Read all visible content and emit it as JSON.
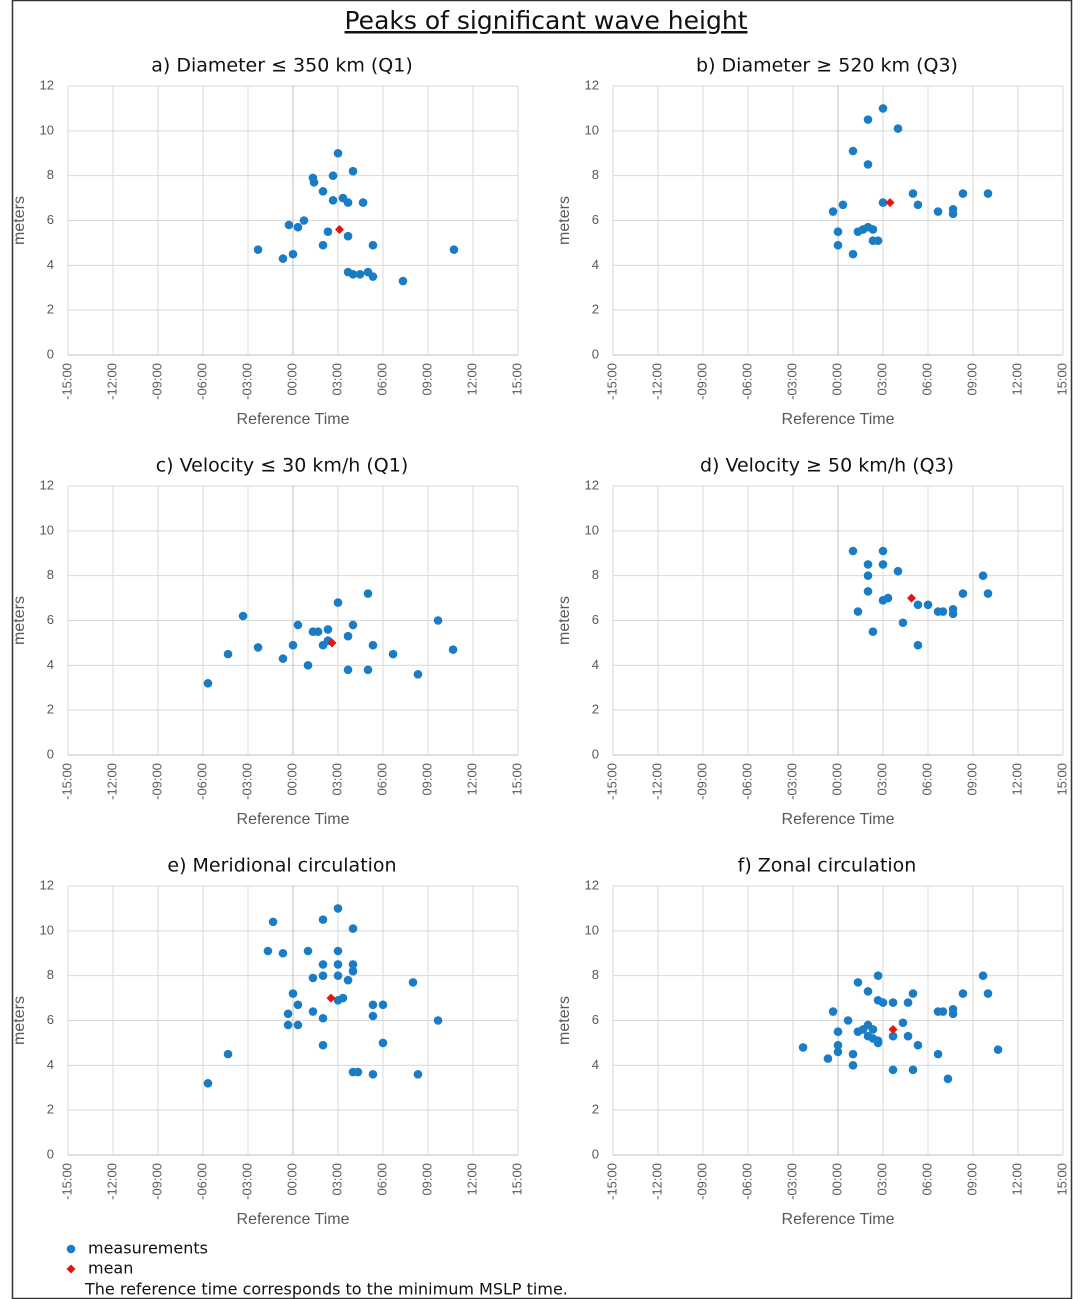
{
  "title": "Peaks of significant wave height",
  "legend": [
    {
      "name": "measurements",
      "color": "#1b7cc6",
      "marker": "circle"
    },
    {
      "name": "mean",
      "color": "#e3170f",
      "marker": "diamond"
    }
  ],
  "note": "The reference time corresponds to the minimum MSLP time.",
  "chart_data": [
    {
      "type": "scatter",
      "title": "a) Diameter ≤ 350 km (Q1)",
      "xlabel": "Reference Time",
      "ylabel": "meters",
      "xlim": [
        -15,
        15
      ],
      "xticks": [
        {
          "value": -15,
          "label": "-15:00"
        },
        {
          "value": -12,
          "label": "-12:00"
        },
        {
          "value": -9,
          "label": "-09:00"
        },
        {
          "value": -6,
          "label": "-06:00"
        },
        {
          "value": -3,
          "label": "-03:00"
        },
        {
          "value": 0,
          "label": "00:00"
        },
        {
          "value": 3,
          "label": "03:00"
        },
        {
          "value": 6,
          "label": "06:00"
        },
        {
          "value": 9,
          "label": "09:00"
        },
        {
          "value": 12,
          "label": "12:00"
        },
        {
          "value": 15,
          "label": "15:00"
        }
      ],
      "ylim": [
        0,
        12
      ],
      "yticks": [
        0,
        2,
        4,
        6,
        8,
        10,
        12
      ],
      "grid": true,
      "series": [
        {
          "x": [
            -2.33,
            -0.67,
            -0.27,
            0,
            0.33,
            0.73,
            1.33,
            1.4,
            2,
            2,
            2.33,
            2.67,
            2.67,
            3,
            3.33,
            3.67,
            4,
            3.67,
            4.67,
            3.67,
            4,
            4.47,
            5,
            5.33,
            5.33,
            7.33,
            10.73
          ],
          "values": [
            4.7,
            4.3,
            5.8,
            4.5,
            5.7,
            6.0,
            7.9,
            7.7,
            7.3,
            4.9,
            5.5,
            8.0,
            6.9,
            9.0,
            7.0,
            6.8,
            8.2,
            5.3,
            6.8,
            3.7,
            3.6,
            3.6,
            3.7,
            3.5,
            4.9,
            3.3,
            4.7
          ]
        },
        {
          "x": [
            3.1
          ],
          "values": [
            5.6
          ]
        }
      ]
    },
    {
      "type": "scatter",
      "title": "b) Diameter ≥ 520 km (Q3)",
      "xlabel": "Reference Time",
      "ylabel": "meters",
      "xlim": [
        -15,
        15
      ],
      "xticks": [
        {
          "value": -15,
          "label": "-15:00"
        },
        {
          "value": -12,
          "label": "-12:00"
        },
        {
          "value": -9,
          "label": "-09:00"
        },
        {
          "value": -6,
          "label": "-06:00"
        },
        {
          "value": -3,
          "label": "-03:00"
        },
        {
          "value": 0,
          "label": "00:00"
        },
        {
          "value": 3,
          "label": "03:00"
        },
        {
          "value": 6,
          "label": "06:00"
        },
        {
          "value": 9,
          "label": "09:00"
        },
        {
          "value": 12,
          "label": "12:00"
        },
        {
          "value": 15,
          "label": "15:00"
        }
      ],
      "ylim": [
        0,
        12
      ],
      "yticks": [
        0,
        2,
        4,
        6,
        8,
        10,
        12
      ],
      "grid": true,
      "series": [
        {
          "x": [
            -0.33,
            0.33,
            0,
            0,
            1,
            1,
            1.33,
            1.67,
            2,
            2.33,
            2,
            2,
            2.33,
            2.67,
            3,
            3,
            4,
            5,
            5.33,
            6.67,
            7.67,
            7.67,
            8.33,
            10
          ],
          "values": [
            6.4,
            6.7,
            5.5,
            4.9,
            9.1,
            4.5,
            5.5,
            5.6,
            5.7,
            5.6,
            10.5,
            8.5,
            5.1,
            5.1,
            11.0,
            6.8,
            10.1,
            7.2,
            6.7,
            6.4,
            6.5,
            6.3,
            7.2,
            7.2
          ]
        },
        {
          "x": [
            3.47
          ],
          "values": [
            6.8
          ]
        }
      ]
    },
    {
      "type": "scatter",
      "title": "c) Velocity ≤ 30 km/h (Q1)",
      "xlabel": "Reference Time",
      "ylabel": "meters",
      "xlim": [
        -15,
        15
      ],
      "xticks": [
        {
          "value": -15,
          "label": "-15:00"
        },
        {
          "value": -12,
          "label": "-12:00"
        },
        {
          "value": -9,
          "label": "-09:00"
        },
        {
          "value": -6,
          "label": "-06:00"
        },
        {
          "value": -3,
          "label": "-03:00"
        },
        {
          "value": 0,
          "label": "00:00"
        },
        {
          "value": 3,
          "label": "03:00"
        },
        {
          "value": 6,
          "label": "06:00"
        },
        {
          "value": 9,
          "label": "09:00"
        },
        {
          "value": 12,
          "label": "12:00"
        },
        {
          "value": 15,
          "label": "15:00"
        }
      ],
      "ylim": [
        0,
        12
      ],
      "yticks": [
        0,
        2,
        4,
        6,
        8,
        10,
        12
      ],
      "grid": true,
      "series": [
        {
          "x": [
            -5.67,
            -4.33,
            -3.33,
            -2.33,
            -0.67,
            0,
            0.33,
            1,
            1.33,
            1.67,
            2,
            2.33,
            2.33,
            3,
            3.67,
            4,
            3.67,
            5,
            5,
            5.33,
            6.67,
            8.33,
            9.67,
            10.67
          ],
          "values": [
            3.2,
            4.5,
            6.2,
            4.8,
            4.3,
            4.9,
            5.8,
            4.0,
            5.5,
            5.5,
            4.9,
            5.6,
            5.1,
            6.8,
            5.3,
            5.8,
            3.8,
            7.2,
            3.8,
            4.9,
            4.5,
            3.6,
            6.0,
            4.7
          ]
        },
        {
          "x": [
            2.6
          ],
          "values": [
            5.0
          ]
        }
      ]
    },
    {
      "type": "scatter",
      "title": "d) Velocity ≥ 50 km/h (Q3)",
      "xlabel": "Reference Time",
      "ylabel": "meters",
      "xlim": [
        -15,
        15
      ],
      "xticks": [
        {
          "value": -15,
          "label": "-15:00"
        },
        {
          "value": -12,
          "label": "-12:00"
        },
        {
          "value": -9,
          "label": "-09:00"
        },
        {
          "value": -6,
          "label": "-06:00"
        },
        {
          "value": -3,
          "label": "-03:00"
        },
        {
          "value": 0,
          "label": "00:00"
        },
        {
          "value": 3,
          "label": "03:00"
        },
        {
          "value": 6,
          "label": "06:00"
        },
        {
          "value": 9,
          "label": "09:00"
        },
        {
          "value": 12,
          "label": "12:00"
        },
        {
          "value": 15,
          "label": "15:00"
        }
      ],
      "ylim": [
        0,
        12
      ],
      "yticks": [
        0,
        2,
        4,
        6,
        8,
        10,
        12
      ],
      "grid": true,
      "series": [
        {
          "x": [
            1,
            1.33,
            2,
            2,
            2,
            2.33,
            3,
            3,
            3,
            3.33,
            4,
            4.33,
            5.33,
            5.33,
            6,
            6.67,
            7,
            7.67,
            7.67,
            8.33,
            9.67,
            10
          ],
          "values": [
            9.1,
            6.4,
            8.5,
            8.0,
            7.3,
            5.5,
            9.1,
            8.5,
            6.9,
            7.0,
            8.2,
            5.9,
            6.7,
            4.9,
            6.7,
            6.4,
            6.4,
            6.5,
            6.3,
            7.2,
            8.0,
            7.2
          ]
        },
        {
          "x": [
            4.9
          ],
          "values": [
            7.0
          ]
        }
      ]
    },
    {
      "type": "scatter",
      "title": "e) Meridional circulation",
      "xlabel": "Reference Time",
      "ylabel": "meters",
      "xlim": [
        -15,
        15
      ],
      "xticks": [
        {
          "value": -15,
          "label": "-15:00"
        },
        {
          "value": -12,
          "label": "-12:00"
        },
        {
          "value": -9,
          "label": "-09:00"
        },
        {
          "value": -6,
          "label": "-06:00"
        },
        {
          "value": -3,
          "label": "-03:00"
        },
        {
          "value": 0,
          "label": "00:00"
        },
        {
          "value": 3,
          "label": "03:00"
        },
        {
          "value": 6,
          "label": "06:00"
        },
        {
          "value": 9,
          "label": "09:00"
        },
        {
          "value": 12,
          "label": "12:00"
        },
        {
          "value": 15,
          "label": "15:00"
        }
      ],
      "ylim": [
        0,
        12
      ],
      "yticks": [
        0,
        2,
        4,
        6,
        8,
        10,
        12
      ],
      "grid": true,
      "series": [
        {
          "x": [
            -5.67,
            -4.33,
            -1.67,
            -1.33,
            -0.67,
            -0.33,
            -0.33,
            0,
            0.33,
            0.33,
            1,
            1.33,
            1.33,
            2,
            2,
            2,
            2,
            2,
            3,
            3,
            3,
            3,
            3,
            3.33,
            3.67,
            4,
            4,
            4,
            4,
            4.33,
            5.33,
            5.33,
            5.33,
            6,
            6,
            8,
            8.33,
            9.67
          ],
          "values": [
            3.2,
            4.5,
            9.1,
            10.4,
            9.0,
            6.3,
            5.8,
            7.2,
            6.7,
            5.8,
            9.1,
            7.9,
            6.4,
            10.5,
            8.5,
            8.0,
            6.1,
            4.9,
            11.0,
            9.1,
            8.5,
            8.0,
            6.9,
            7.0,
            7.8,
            10.1,
            8.5,
            8.2,
            3.7,
            3.7,
            6.7,
            6.2,
            3.6,
            6.7,
            5.0,
            7.7,
            3.6,
            6.0
          ]
        },
        {
          "x": [
            2.53
          ],
          "values": [
            7.0
          ]
        }
      ]
    },
    {
      "type": "scatter",
      "title": "f) Zonal circulation",
      "xlabel": "Reference Time",
      "ylabel": "meters",
      "xlim": [
        -15,
        15
      ],
      "xticks": [
        {
          "value": -15,
          "label": "-15:00"
        },
        {
          "value": -12,
          "label": "-12:00"
        },
        {
          "value": -9,
          "label": "-09:00"
        },
        {
          "value": -6,
          "label": "-06:00"
        },
        {
          "value": -3,
          "label": "-03:00"
        },
        {
          "value": 0,
          "label": "00:00"
        },
        {
          "value": 3,
          "label": "03:00"
        },
        {
          "value": 6,
          "label": "06:00"
        },
        {
          "value": 9,
          "label": "09:00"
        },
        {
          "value": 12,
          "label": "12:00"
        },
        {
          "value": 15,
          "label": "15:00"
        }
      ],
      "ylim": [
        0,
        12
      ],
      "yticks": [
        0,
        2,
        4,
        6,
        8,
        10,
        12
      ],
      "grid": true,
      "series": [
        {
          "x": [
            -2.33,
            -0.67,
            -0.33,
            0,
            0,
            0,
            0.67,
            1,
            1,
            1.33,
            1.33,
            1.67,
            2,
            2,
            2,
            2.33,
            2.33,
            2.67,
            2.67,
            2.67,
            2.67,
            3,
            3.67,
            3.67,
            3.67,
            4.33,
            4.67,
            4.67,
            5,
            5,
            5.33,
            6.67,
            6.67,
            7,
            7.33,
            7.67,
            7.67,
            8.33,
            9.67,
            10,
            10.67
          ],
          "values": [
            4.8,
            4.3,
            6.4,
            4.9,
            4.6,
            5.5,
            6.0,
            4.5,
            4.0,
            7.7,
            5.5,
            5.6,
            5.8,
            7.3,
            5.3,
            5.6,
            5.2,
            5.1,
            8.0,
            5.0,
            6.9,
            6.8,
            5.3,
            3.8,
            6.8,
            5.9,
            6.8,
            5.3,
            7.2,
            3.8,
            4.9,
            6.4,
            4.5,
            6.4,
            3.4,
            6.5,
            6.3,
            7.2,
            8.0,
            7.2,
            4.7
          ]
        },
        {
          "x": [
            3.67
          ],
          "values": [
            5.6
          ]
        }
      ]
    }
  ]
}
